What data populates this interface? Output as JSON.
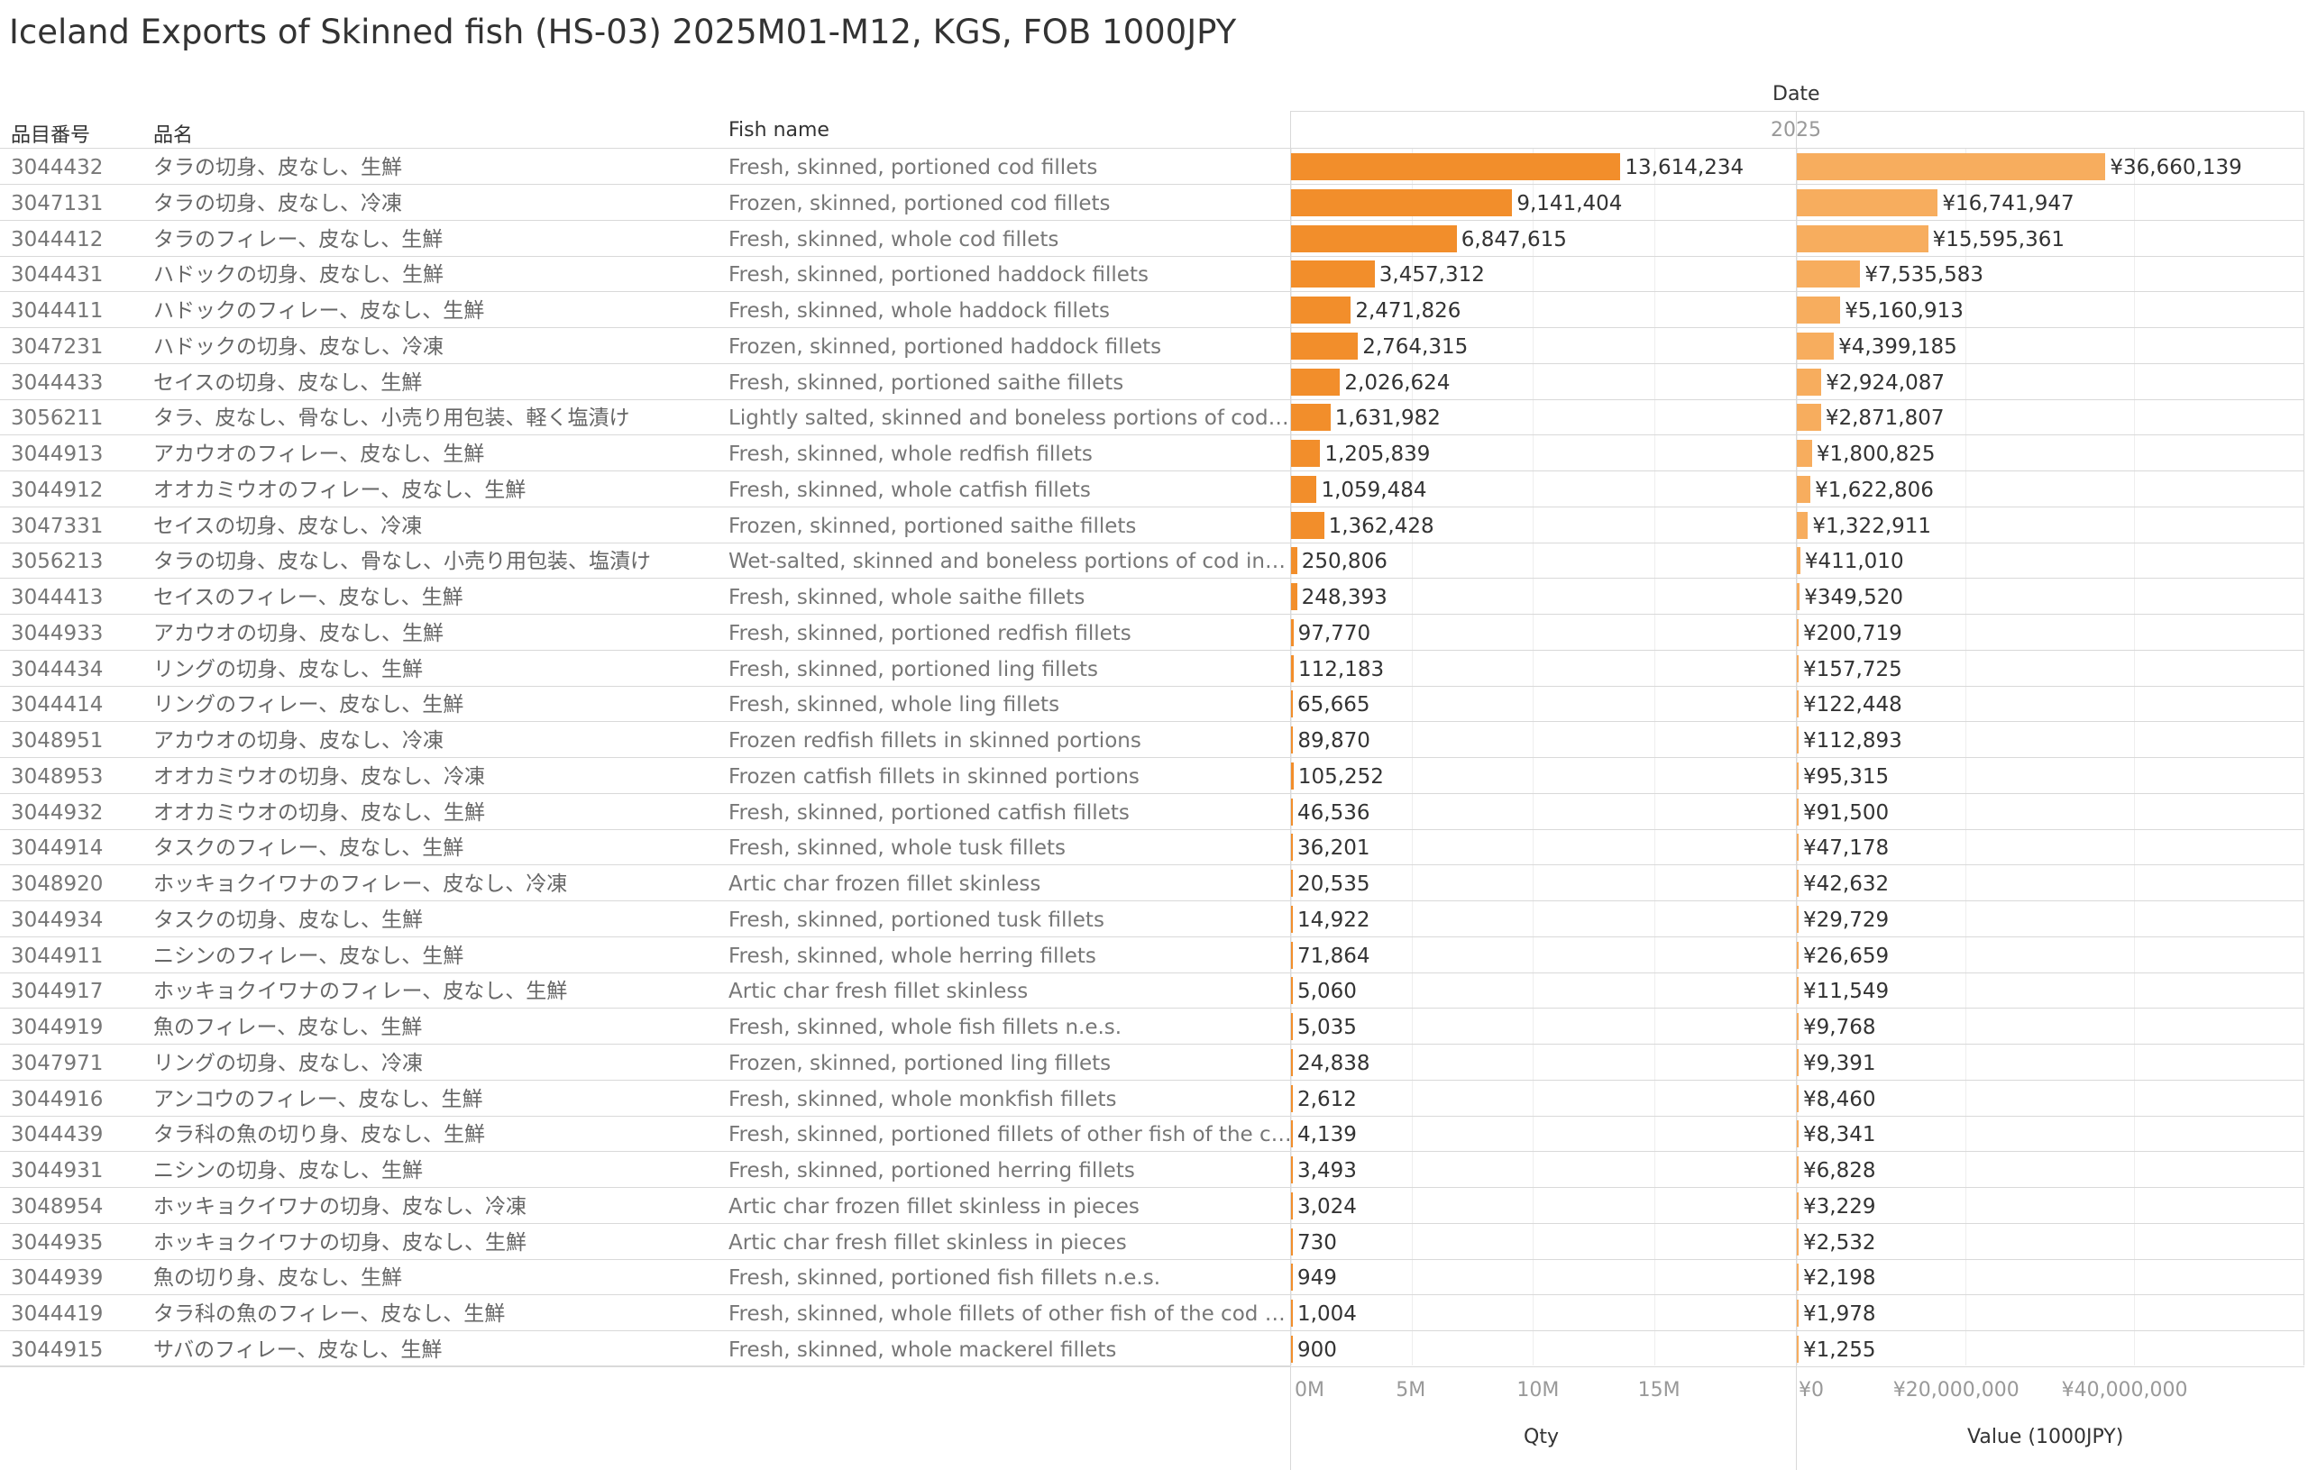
{
  "title": "Iceland Exports of Skinned fish (HS-03) 2025M01-M12, KGS, FOB 1000JPY",
  "headers": {
    "code": "品目番号",
    "name_ja": "品名",
    "fish_name": "Fish name",
    "date": "Date",
    "year": "2025"
  },
  "chart_data": {
    "type": "bar",
    "orientation": "horizontal",
    "title": "Iceland Exports of Skinned fish (HS-03) 2025M01-M12, KGS, FOB 1000JPY",
    "categories": [
      "3044432",
      "3047131",
      "3044412",
      "3044431",
      "3044411",
      "3047231",
      "3044433",
      "3056211",
      "3044913",
      "3044912",
      "3047331",
      "3056213",
      "3044413",
      "3044933",
      "3044434",
      "3044414",
      "3048951",
      "3048953",
      "3044932",
      "3044914",
      "3048920",
      "3044934",
      "3044911",
      "3044917",
      "3044919",
      "3047971",
      "3044916",
      "3044439",
      "3044931",
      "3048954",
      "3044935",
      "3044939",
      "3044419",
      "3044915"
    ],
    "series": [
      {
        "name": "Qty",
        "values": [
          13614234,
          9141404,
          6847615,
          3457312,
          2471826,
          2764315,
          2026624,
          1631982,
          1205839,
          1059484,
          1362428,
          250806,
          248393,
          97770,
          112183,
          65665,
          89870,
          105252,
          46536,
          36201,
          20535,
          14922,
          71864,
          5060,
          5035,
          24838,
          2612,
          4139,
          3493,
          3024,
          730,
          949,
          1004,
          900
        ]
      },
      {
        "name": "Value (1000JPY)",
        "values": [
          36660139,
          16741947,
          15595361,
          7535583,
          5160913,
          4399185,
          2924087,
          2871807,
          1800825,
          1622806,
          1322911,
          411010,
          349520,
          200719,
          157725,
          122448,
          112893,
          95315,
          91500,
          47178,
          42632,
          29729,
          26659,
          11549,
          9768,
          9391,
          8460,
          8341,
          6828,
          3229,
          2532,
          2198,
          1978,
          1255
        ]
      }
    ],
    "qty_axis": {
      "title": "Qty",
      "ticks": [
        "0M",
        "5M",
        "10M",
        "15M"
      ],
      "range": [
        0,
        19000000
      ]
    },
    "value_axis": {
      "title": "Value (1000JPY)",
      "ticks": [
        "¥0",
        "¥20,000,000",
        "¥40,000,000"
      ],
      "range": [
        0,
        53000000
      ]
    },
    "colors": {
      "qty": "#f28e2b",
      "value": "#f7ad5e"
    }
  },
  "rows": [
    {
      "code": "3044432",
      "ja": "タラの切身、皮なし、生鮮",
      "en": "Fresh, skinned, portioned cod fillets",
      "qty": "13,614,234",
      "value": "¥36,660,139"
    },
    {
      "code": "3047131",
      "ja": "タラの切身、皮なし、冷凍",
      "en": "Frozen, skinned, portioned cod fillets",
      "qty": "9,141,404",
      "value": "¥16,741,947"
    },
    {
      "code": "3044412",
      "ja": "タラのフィレー、皮なし、生鮮",
      "en": "Fresh, skinned, whole cod fillets",
      "qty": "6,847,615",
      "value": "¥15,595,361"
    },
    {
      "code": "3044431",
      "ja": "ハドックの切身、皮なし、生鮮",
      "en": "Fresh, skinned, portioned haddock fillets",
      "qty": "3,457,312",
      "value": "¥7,535,583"
    },
    {
      "code": "3044411",
      "ja": "ハドックのフィレー、皮なし、生鮮",
      "en": "Fresh, skinned, whole haddock fillets",
      "qty": "2,471,826",
      "value": "¥5,160,913"
    },
    {
      "code": "3047231",
      "ja": "ハドックの切身、皮なし、冷凍",
      "en": "Frozen, skinned, portioned haddock fillets",
      "qty": "2,764,315",
      "value": "¥4,399,185"
    },
    {
      "code": "3044433",
      "ja": "セイスの切身、皮なし、生鮮",
      "en": "Fresh, skinned, portioned saithe fillets",
      "qty": "2,026,624",
      "value": "¥2,924,087"
    },
    {
      "code": "3056211",
      "ja": "タラ、皮なし、骨なし、小売り用包装、軽く塩漬け",
      "en": "Lightly salted, skinned and boneless portions of cod in ..",
      "qty": "1,631,982",
      "value": "¥2,871,807"
    },
    {
      "code": "3044913",
      "ja": "アカウオのフィレー、皮なし、生鮮",
      "en": "Fresh, skinned, whole redfish fillets",
      "qty": "1,205,839",
      "value": "¥1,800,825"
    },
    {
      "code": "3044912",
      "ja": "オオカミウオのフィレー、皮なし、生鮮",
      "en": "Fresh, skinned, whole catfish fillets",
      "qty": "1,059,484",
      "value": "¥1,622,806"
    },
    {
      "code": "3047331",
      "ja": "セイスの切身、皮なし、冷凍",
      "en": "Frozen, skinned, portioned saithe fillets",
      "qty": "1,362,428",
      "value": "¥1,322,911"
    },
    {
      "code": "3056213",
      "ja": "タラの切身、皮なし、骨なし、小売り用包装、塩漬け",
      "en": "Wet-salted, skinned and boneless portions of cod in re..",
      "qty": "250,806",
      "value": "¥411,010"
    },
    {
      "code": "3044413",
      "ja": "セイスのフィレー、皮なし、生鮮",
      "en": "Fresh, skinned, whole saithe fillets",
      "qty": "248,393",
      "value": "¥349,520"
    },
    {
      "code": "3044933",
      "ja": "アカウオの切身、皮なし、生鮮",
      "en": "Fresh, skinned, portioned redfish fillets",
      "qty": "97,770",
      "value": "¥200,719"
    },
    {
      "code": "3044434",
      "ja": "リングの切身、皮なし、生鮮",
      "en": "Fresh, skinned, portioned ling fillets",
      "qty": "112,183",
      "value": "¥157,725"
    },
    {
      "code": "3044414",
      "ja": "リングのフィレー、皮なし、生鮮",
      "en": "Fresh, skinned, whole ling fillets",
      "qty": "65,665",
      "value": "¥122,448"
    },
    {
      "code": "3048951",
      "ja": "アカウオの切身、皮なし、冷凍",
      "en": "Frozen redfish fillets in skinned portions",
      "qty": "89,870",
      "value": "¥112,893"
    },
    {
      "code": "3048953",
      "ja": "オオカミウオの切身、皮なし、冷凍",
      "en": "Frozen catfish fillets in skinned portions",
      "qty": "105,252",
      "value": "¥95,315"
    },
    {
      "code": "3044932",
      "ja": "オオカミウオの切身、皮なし、生鮮",
      "en": "Fresh, skinned, portioned catfish fillets",
      "qty": "46,536",
      "value": "¥91,500"
    },
    {
      "code": "3044914",
      "ja": "タスクのフィレー、皮なし、生鮮",
      "en": "Fresh, skinned, whole tusk fillets",
      "qty": "36,201",
      "value": "¥47,178"
    },
    {
      "code": "3048920",
      "ja": "ホッキョクイワナのフィレー、皮なし、冷凍",
      "en": "Artic char frozen fillet skinless",
      "qty": "20,535",
      "value": "¥42,632"
    },
    {
      "code": "3044934",
      "ja": "タスクの切身、皮なし、生鮮",
      "en": "Fresh, skinned, portioned tusk fillets",
      "qty": "14,922",
      "value": "¥29,729"
    },
    {
      "code": "3044911",
      "ja": "ニシンのフィレー、皮なし、生鮮",
      "en": "Fresh, skinned, whole herring fillets",
      "qty": "71,864",
      "value": "¥26,659"
    },
    {
      "code": "3044917",
      "ja": "ホッキョクイワナのフィレー、皮なし、生鮮",
      "en": "Artic char fresh fillet skinless",
      "qty": "5,060",
      "value": "¥11,549"
    },
    {
      "code": "3044919",
      "ja": "魚のフィレー、皮なし、生鮮",
      "en": "Fresh, skinned, whole fish fillets n.e.s.",
      "qty": "5,035",
      "value": "¥9,768"
    },
    {
      "code": "3047971",
      "ja": "リングの切身、皮なし、冷凍",
      "en": "Frozen, skinned, portioned ling fillets",
      "qty": "24,838",
      "value": "¥9,391"
    },
    {
      "code": "3044916",
      "ja": "アンコウのフィレー、皮なし、生鮮",
      "en": "Fresh, skinned, whole monkfish fillets",
      "qty": "2,612",
      "value": "¥8,460"
    },
    {
      "code": "3044439",
      "ja": "タラ科の魚の切り身、皮なし、生鮮",
      "en": "Fresh, skinned, portioned fillets of other fish of the co..",
      "qty": "4,139",
      "value": "¥8,341"
    },
    {
      "code": "3044931",
      "ja": "ニシンの切身、皮なし、生鮮",
      "en": "Fresh, skinned, portioned herring fillets",
      "qty": "3,493",
      "value": "¥6,828"
    },
    {
      "code": "3048954",
      "ja": "ホッキョクイワナの切身、皮なし、冷凍",
      "en": "Artic char frozen fillet skinless in pieces",
      "qty": "3,024",
      "value": "¥3,229"
    },
    {
      "code": "3044935",
      "ja": "ホッキョクイワナの切身、皮なし、生鮮",
      "en": "Artic char fresh fillet skinless in pieces",
      "qty": "730",
      "value": "¥2,532"
    },
    {
      "code": "3044939",
      "ja": "魚の切り身、皮なし、生鮮",
      "en": "Fresh, skinned, portioned fish fillets n.e.s.",
      "qty": "949",
      "value": "¥2,198"
    },
    {
      "code": "3044419",
      "ja": "タラ科の魚のフィレー、皮なし、生鮮",
      "en": "Fresh, skinned, whole fillets of other fish of the cod fa..",
      "qty": "1,004",
      "value": "¥1,978"
    },
    {
      "code": "3044915",
      "ja": "サバのフィレー、皮なし、生鮮",
      "en": "Fresh, skinned, whole mackerel fillets",
      "qty": "900",
      "value": "¥1,255"
    }
  ]
}
